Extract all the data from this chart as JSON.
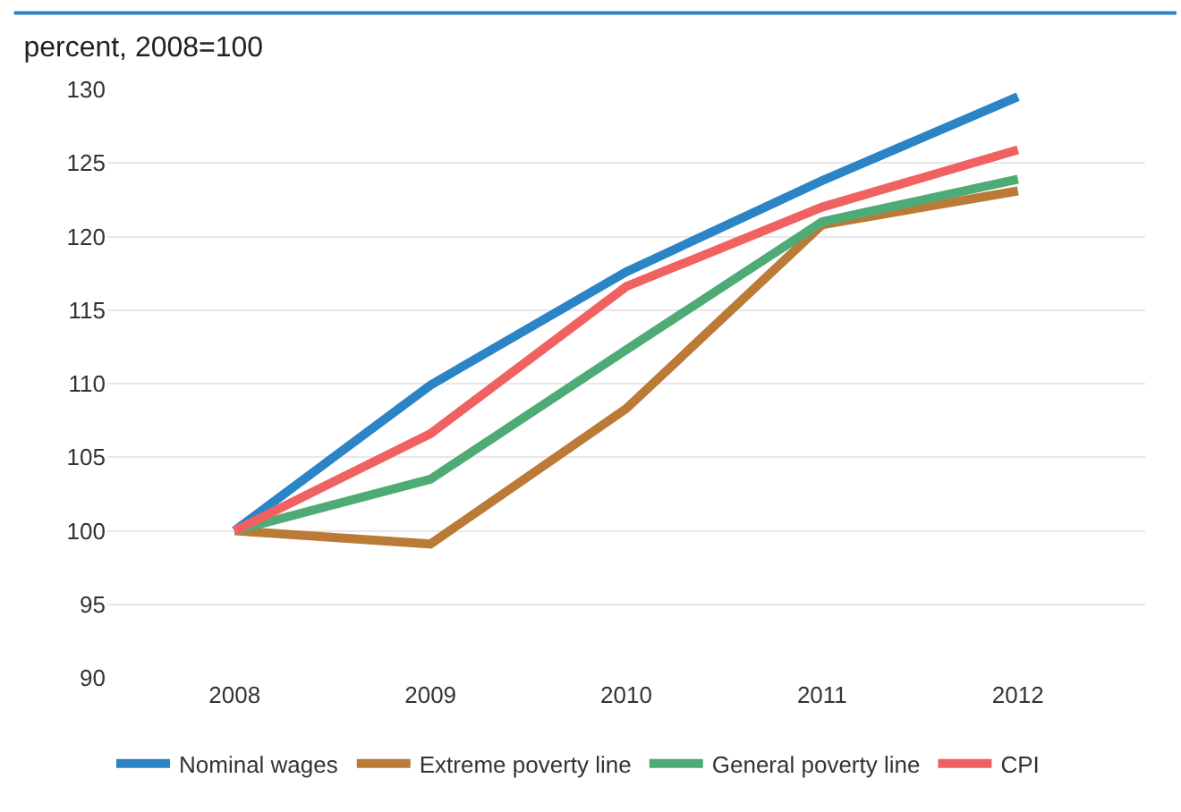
{
  "chart_data": {
    "type": "line",
    "title": "percent, 2008=100",
    "categories": [
      "2008",
      "2009",
      "2010",
      "2011",
      "2012"
    ],
    "series": [
      {
        "name": "Nominal wages",
        "color": "#2a84c6",
        "values": [
          100,
          109.9,
          117.6,
          123.8,
          129.5
        ]
      },
      {
        "name": "Extreme poverty line",
        "color": "#bb7a35",
        "values": [
          100,
          99.1,
          108.3,
          120.8,
          123.1
        ]
      },
      {
        "name": "General poverty line",
        "color": "#4fab75",
        "values": [
          100,
          103.5,
          112.3,
          121.0,
          123.9
        ]
      },
      {
        "name": "CPI",
        "color": "#f06161",
        "values": [
          100,
          106.6,
          116.6,
          122.0,
          125.9
        ]
      }
    ],
    "ylim": [
      90,
      130
    ],
    "yticks": [
      90,
      95,
      100,
      105,
      110,
      115,
      120,
      125,
      130
    ],
    "grid": "y",
    "legend": "bottom",
    "marker": "none",
    "line_style": "solid"
  }
}
